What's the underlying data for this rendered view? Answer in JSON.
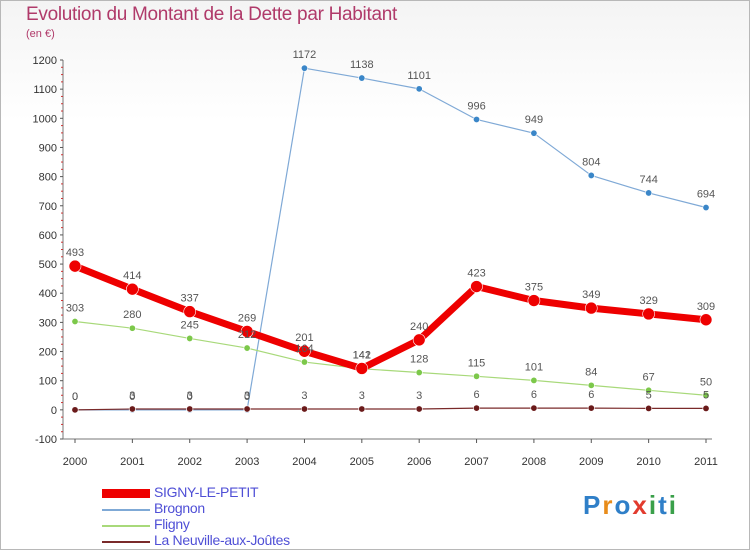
{
  "header": {
    "title": "Evolution du Montant de la Dette par Habitant",
    "subtitle": "(en €)"
  },
  "logo": {
    "text": "Proxiti",
    "letters": [
      "P",
      "r",
      "o",
      "x",
      "i",
      "t",
      "i"
    ],
    "colors": [
      "#2f7fc8",
      "#e88c1a",
      "#2f7fc8",
      "#e23b2e",
      "#3aa04a",
      "#2f7fc8",
      "#3aa04a"
    ]
  },
  "chart_data": {
    "type": "line",
    "title": "Evolution du Montant de la Dette par Habitant",
    "ylabel": "(en €)",
    "x": [
      "2000",
      "2001",
      "2002",
      "2003",
      "2004",
      "2005",
      "2006",
      "2007",
      "2008",
      "2009",
      "2010",
      "2011"
    ],
    "ylim": [
      -100,
      1200
    ],
    "yticks": [
      -100,
      0,
      100,
      200,
      300,
      400,
      500,
      600,
      700,
      800,
      900,
      1000,
      1100,
      1200
    ],
    "grid": false,
    "legend_position": "bottom-left",
    "series": [
      {
        "name": "SIGNY-LE-PETIT",
        "color": "#ee0000",
        "marker_color": "#ee0000",
        "label_color": "#555555",
        "width": 7,
        "marker_r": 6,
        "values": [
          493,
          414,
          337,
          269,
          201,
          142,
          240,
          423,
          375,
          349,
          329,
          309
        ]
      },
      {
        "name": "Brognon",
        "color": "#7fa9d6",
        "marker_color": "#3a86c8",
        "label_color": "#555555",
        "width": 1.2,
        "marker_r": 3.2,
        "values": [
          0,
          0,
          0,
          0,
          1172,
          1138,
          1101,
          996,
          949,
          804,
          744,
          694
        ]
      },
      {
        "name": "Fligny",
        "color": "#a8d97a",
        "marker_color": "#7cc84a",
        "label_color": "#555555",
        "width": 1.2,
        "marker_r": 3.2,
        "values": [
          303,
          280,
          245,
          212,
          164,
          141,
          128,
          115,
          101,
          84,
          67,
          50
        ]
      },
      {
        "name": "La Neuville-aux-Joûtes",
        "color": "#7a2a2a",
        "marker_color": "#6a1a1a",
        "label_color": "#555555",
        "width": 1.2,
        "marker_r": 3.2,
        "values": [
          0,
          3,
          3,
          3,
          3,
          3,
          3,
          6,
          6,
          6,
          5,
          5
        ]
      }
    ]
  }
}
